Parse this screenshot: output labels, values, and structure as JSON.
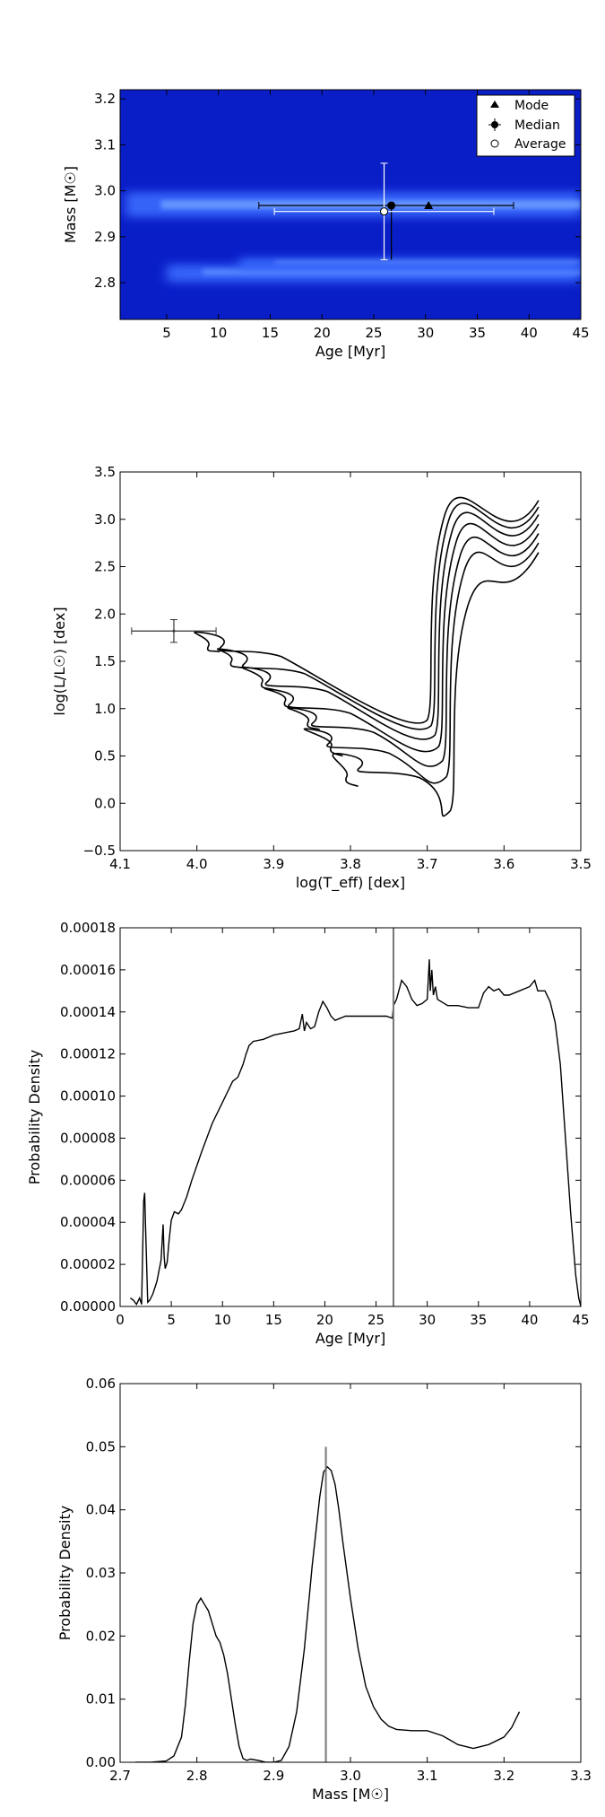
{
  "chart_data": [
    {
      "type": "heatmap",
      "xlabel": "Age [Myr]",
      "ylabel": "Mass [M☉]",
      "xlim": [
        0.5,
        45
      ],
      "ylim": [
        2.72,
        3.22
      ],
      "xticks": [
        5,
        10,
        15,
        20,
        25,
        30,
        35,
        40,
        45
      ],
      "yticks": [
        2.8,
        2.9,
        3.0,
        3.1,
        3.2
      ],
      "xtick_labels": [
        "5",
        "10",
        "15",
        "20",
        "25",
        "30",
        "35",
        "40",
        "45"
      ],
      "ytick_labels": [
        "2.8",
        "2.9",
        "3.0",
        "3.1",
        "3.2"
      ],
      "colors": {
        "background": "#0a1ec8",
        "band": "#3a6cff",
        "band_core": "#6fa0ff"
      },
      "bands": [
        {
          "mass": 2.97,
          "age_range": [
            1,
            45
          ],
          "strength": 1.0
        },
        {
          "mass": 2.82,
          "age_range": [
            5,
            45
          ],
          "strength": 0.7
        },
        {
          "mass": 2.84,
          "age_range": [
            12,
            45
          ],
          "strength": 0.5
        }
      ],
      "points": [
        {
          "name": "Mode",
          "marker": "triangle",
          "age": 30.3,
          "mass": 2.968
        },
        {
          "name": "Median",
          "marker": "filled-circle",
          "age": 26.7,
          "mass": 2.968,
          "age_err": [
            12.8,
            11.8
          ],
          "mass_err": [
            0.118,
            0
          ]
        },
        {
          "name": "Average",
          "marker": "open-circle",
          "age": 26.0,
          "mass": 2.955,
          "age_err": [
            10.6,
            10.6
          ],
          "mass_err": [
            0.105,
            0.105
          ]
        }
      ],
      "legend": {
        "position": "top-right",
        "entries": [
          "Mode",
          "Median",
          "Average"
        ]
      }
    },
    {
      "type": "line",
      "xlabel": "log(T_eff) [dex]",
      "ylabel": "log(L/L☉) [dex]",
      "xlim": [
        4.1,
        3.5
      ],
      "ylim": [
        -0.5,
        3.5
      ],
      "xticks": [
        4.1,
        4.0,
        3.9,
        3.8,
        3.7,
        3.6,
        3.5
      ],
      "yticks": [
        -0.5,
        0.0,
        0.5,
        1.0,
        1.5,
        2.0,
        2.5,
        3.0,
        3.5
      ],
      "xtick_labels": [
        "4.1",
        "4.0",
        "3.9",
        "3.8",
        "3.7",
        "3.6",
        "3.5"
      ],
      "ytick_labels": [
        "−0.5",
        "0.0",
        "0.5",
        "1.0",
        "1.5",
        "2.0",
        "2.5",
        "3.0",
        "3.5"
      ],
      "isochrones": [
        {
          "start": [
            3.79,
            0.18
          ],
          "hook_min_y": 0.28,
          "turn": [
            3.81,
            0.52
          ],
          "rgb_x": 3.67,
          "rgb_y": -0.08,
          "top_y": 2.65
        },
        {
          "start": [
            3.81,
            0.5
          ],
          "hook_min_y": 0.6,
          "turn": [
            3.85,
            0.78
          ],
          "rgb_x": 3.675,
          "rgb_y": 0.28,
          "top_y": 2.75
        },
        {
          "start": [
            3.84,
            0.78
          ],
          "hook_min_y": 0.86,
          "turn": [
            3.87,
            1.0
          ],
          "rgb_x": 3.68,
          "rgb_y": 0.45,
          "top_y": 2.85
        },
        {
          "start": [
            3.87,
            1.0
          ],
          "hook_min_y": 1.08,
          "turn": [
            3.9,
            1.2
          ],
          "rgb_x": 3.685,
          "rgb_y": 0.6,
          "top_y": 2.95
        },
        {
          "start": [
            3.9,
            1.2
          ],
          "hook_min_y": 1.28,
          "turn": [
            3.93,
            1.43
          ],
          "rgb_x": 3.69,
          "rgb_y": 0.72,
          "top_y": 3.05
        },
        {
          "start": [
            3.94,
            1.43
          ],
          "hook_min_y": 1.5,
          "turn": [
            3.96,
            1.62
          ],
          "rgb_x": 3.695,
          "rgb_y": 0.82,
          "top_y": 3.13
        },
        {
          "start": [
            3.97,
            1.6
          ],
          "hook_min_y": 1.66,
          "turn": [
            3.99,
            1.8
          ],
          "rgb_x": 3.7,
          "rgb_y": 0.88,
          "top_y": 3.2
        }
      ],
      "observed_point": {
        "x": 4.03,
        "y": 1.82,
        "x_err": 0.055,
        "y_err": 0.12
      }
    },
    {
      "type": "line",
      "xlabel": "Age [Myr]",
      "ylabel": "Probability Density",
      "xlim": [
        0,
        45
      ],
      "ylim": [
        0,
        0.00018
      ],
      "xticks": [
        0,
        5,
        10,
        15,
        20,
        25,
        30,
        35,
        40,
        45
      ],
      "yticks": [
        0,
        2e-05,
        4e-05,
        6e-05,
        8e-05,
        0.0001,
        0.00012,
        0.00014,
        0.00016,
        0.00018
      ],
      "xtick_labels": [
        "0",
        "5",
        "10",
        "15",
        "20",
        "25",
        "30",
        "35",
        "40",
        "45"
      ],
      "ytick_labels": [
        "0.00000",
        "0.00002",
        "0.00004",
        "0.00006",
        "0.00008",
        "0.00010",
        "0.00012",
        "0.00014",
        "0.00016",
        "0.00018"
      ],
      "x": [
        1.0,
        1.3,
        1.6,
        1.9,
        2.1,
        2.3,
        2.4,
        2.5,
        2.7,
        2.9,
        3.2,
        3.6,
        4.0,
        4.2,
        4.3,
        4.4,
        4.6,
        4.8,
        5.0,
        5.3,
        5.7,
        6.0,
        6.5,
        7.0,
        8.0,
        9.0,
        10.0,
        11.0,
        11.5,
        12.0,
        12.3,
        12.6,
        13.0,
        14.0,
        15.0,
        16.0,
        17.0,
        17.5,
        17.8,
        18.0,
        18.2,
        18.6,
        19.0,
        19.4,
        19.8,
        20.2,
        20.6,
        21.0,
        21.5,
        22.0,
        23.0,
        24.0,
        25.0,
        26.0,
        26.6,
        26.7,
        27.0,
        27.5,
        28.0,
        28.5,
        29.0,
        29.5,
        30.0,
        30.2,
        30.3,
        30.45,
        30.6,
        30.8,
        31.0,
        32.0,
        33.0,
        34.0,
        35.0,
        35.5,
        36.0,
        36.5,
        37.0,
        37.5,
        38.0,
        39.0,
        40.0,
        40.5,
        40.8,
        41.5,
        42.0,
        42.5,
        43.0,
        43.5,
        44.0,
        44.5,
        44.8,
        45.0
      ],
      "y": [
        4e-06,
        3e-06,
        1e-06,
        4e-06,
        1e-06,
        5e-05,
        5.4e-05,
        3.5e-05,
        2e-06,
        3e-06,
        6e-06,
        1.2e-05,
        2.2e-05,
        3.9e-05,
        2.4e-05,
        1.8e-05,
        2.1e-05,
        3.2e-05,
        4.1e-05,
        4.5e-05,
        4.4e-05,
        4.6e-05,
        5.2e-05,
        6e-05,
        7.4e-05,
        8.7e-05,
        9.7e-05,
        0.000107,
        0.000109,
        0.000115,
        0.00012,
        0.000124,
        0.000126,
        0.000127,
        0.000129,
        0.00013,
        0.000131,
        0.000132,
        0.000139,
        0.000131,
        0.000135,
        0.000132,
        0.000133,
        0.00014,
        0.000145,
        0.000142,
        0.000138,
        0.000136,
        0.000137,
        0.000138,
        0.000138,
        0.000138,
        0.000138,
        0.000138,
        0.000137,
        0.000143,
        0.000146,
        0.000155,
        0.000152,
        0.000146,
        0.000143,
        0.000144,
        0.000146,
        0.000165,
        0.00015,
        0.00016,
        0.000148,
        0.000152,
        0.000146,
        0.000143,
        0.000143,
        0.000142,
        0.000142,
        0.000149,
        0.000152,
        0.00015,
        0.000151,
        0.000148,
        0.000148,
        0.00015,
        0.000152,
        0.000155,
        0.00015,
        0.00015,
        0.000145,
        0.000135,
        0.000115,
        8e-05,
        4.5e-05,
        1.5e-05,
        4e-06,
        0.0
      ],
      "marker_line_x": 26.7
    },
    {
      "type": "line",
      "xlabel": "Mass [M☉]",
      "ylabel": "Probability Density",
      "xlim": [
        2.7,
        3.3
      ],
      "ylim": [
        0,
        0.06
      ],
      "xticks": [
        2.7,
        2.8,
        2.9,
        3.0,
        3.1,
        3.2,
        3.3
      ],
      "yticks": [
        0,
        0.01,
        0.02,
        0.03,
        0.04,
        0.05,
        0.06
      ],
      "xtick_labels": [
        "2.7",
        "2.8",
        "2.9",
        "3.0",
        "3.1",
        "3.2",
        "3.3"
      ],
      "ytick_labels": [
        "0.00",
        "0.01",
        "0.02",
        "0.03",
        "0.04",
        "0.05",
        "0.06"
      ],
      "x": [
        2.72,
        2.74,
        2.76,
        2.77,
        2.78,
        2.785,
        2.79,
        2.795,
        2.8,
        2.805,
        2.81,
        2.815,
        2.82,
        2.825,
        2.83,
        2.835,
        2.84,
        2.845,
        2.85,
        2.855,
        2.86,
        2.865,
        2.87,
        2.88,
        2.89,
        2.9,
        2.91,
        2.92,
        2.93,
        2.94,
        2.95,
        2.96,
        2.965,
        2.97,
        2.975,
        2.98,
        2.985,
        2.99,
        3.0,
        3.01,
        3.02,
        3.03,
        3.04,
        3.05,
        3.06,
        3.08,
        3.1,
        3.12,
        3.14,
        3.16,
        3.18,
        3.2,
        3.21,
        3.22
      ],
      "y": [
        0.0,
        0.0,
        0.0002,
        0.001,
        0.004,
        0.009,
        0.016,
        0.022,
        0.025,
        0.026,
        0.025,
        0.024,
        0.022,
        0.02,
        0.019,
        0.017,
        0.014,
        0.01,
        0.006,
        0.0025,
        0.0006,
        0.0003,
        0.0005,
        0.0003,
        0.0,
        0.0,
        0.0003,
        0.0025,
        0.008,
        0.018,
        0.031,
        0.042,
        0.046,
        0.0468,
        0.0462,
        0.044,
        0.04,
        0.035,
        0.026,
        0.018,
        0.012,
        0.0088,
        0.0068,
        0.0057,
        0.0052,
        0.005,
        0.005,
        0.0042,
        0.0028,
        0.0022,
        0.0028,
        0.004,
        0.0055,
        0.008
      ],
      "marker_line_x": 2.968
    }
  ]
}
